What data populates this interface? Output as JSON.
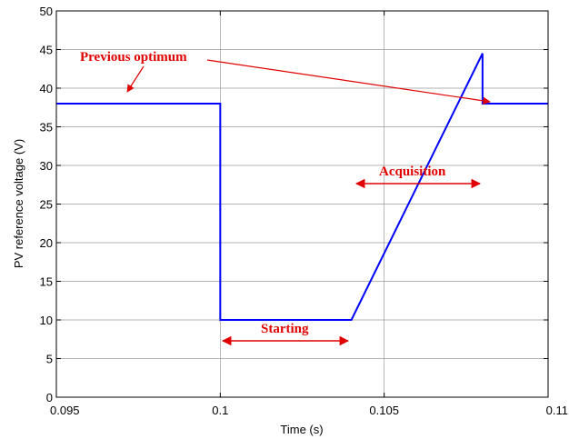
{
  "chart_data": {
    "type": "line",
    "title": "",
    "xlabel": "Time (s)",
    "ylabel": "PV reference voltage (V)",
    "xlim": [
      0.095,
      0.11
    ],
    "ylim": [
      0,
      50
    ],
    "x_ticks": [
      0.095,
      0.1,
      0.105,
      0.11
    ],
    "x_tick_labels": [
      "0.095",
      "0.1",
      "0.105",
      "0.11"
    ],
    "y_ticks": [
      0,
      5,
      10,
      15,
      20,
      25,
      30,
      35,
      40,
      45,
      50
    ],
    "y_tick_labels": [
      "0",
      "5",
      "10",
      "15",
      "20",
      "25",
      "30",
      "35",
      "40",
      "45",
      "50"
    ],
    "grid": true,
    "series": [
      {
        "color": "#0000ff",
        "x": [
          0.095,
          0.1,
          0.1,
          0.104,
          0.108,
          0.108,
          0.11
        ],
        "y": [
          38,
          38,
          10,
          10,
          44.5,
          38,
          38
        ]
      }
    ],
    "annotations": [
      {
        "text": "Previous optimum",
        "color": "#e00000"
      },
      {
        "text": "Acquisition",
        "color": "#e00000"
      },
      {
        "text": "Starting",
        "color": "#e00000"
      }
    ]
  }
}
